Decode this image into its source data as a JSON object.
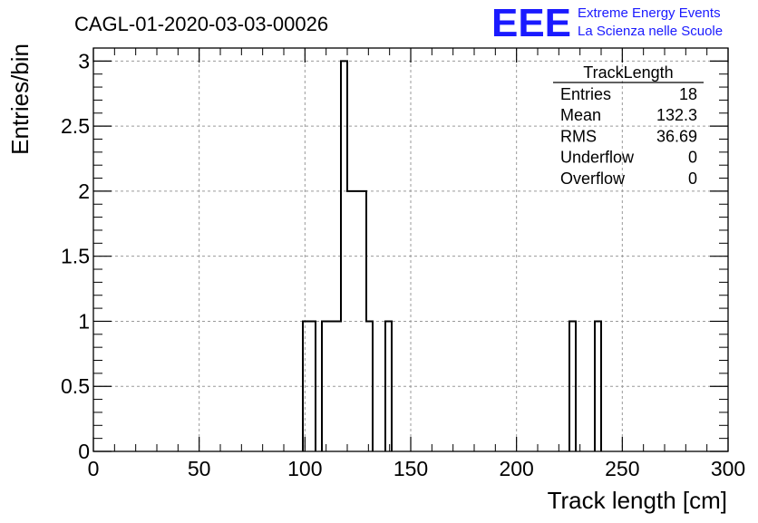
{
  "chart_data": {
    "type": "histogram",
    "title": "CAGL-01-2020-03-03-00026",
    "xlabel": "Track length [cm]",
    "ylabel": "Entries/bin",
    "xlim": [
      0,
      300
    ],
    "ylim": [
      0,
      3.1
    ],
    "x_ticks": [
      "0",
      "50",
      "100",
      "150",
      "200",
      "250",
      "300"
    ],
    "y_ticks": [
      "0",
      "0.5",
      "1",
      "1.5",
      "2",
      "2.5",
      "3"
    ],
    "grid": true,
    "bin_width": 3,
    "bins": [
      {
        "x": 99,
        "count": 1
      },
      {
        "x": 102,
        "count": 1
      },
      {
        "x": 108,
        "count": 1
      },
      {
        "x": 111,
        "count": 1
      },
      {
        "x": 114,
        "count": 1
      },
      {
        "x": 117,
        "count": 3
      },
      {
        "x": 120,
        "count": 2
      },
      {
        "x": 123,
        "count": 2
      },
      {
        "x": 126,
        "count": 2
      },
      {
        "x": 129,
        "count": 1
      },
      {
        "x": 138,
        "count": 1
      },
      {
        "x": 225,
        "count": 1
      },
      {
        "x": 237,
        "count": 1
      }
    ]
  },
  "stats": {
    "title": "TrackLength",
    "rows": [
      {
        "label": "Entries",
        "value": "18"
      },
      {
        "label": "Mean",
        "value": "132.3"
      },
      {
        "label": "RMS",
        "value": "36.69"
      },
      {
        "label": "Underflow",
        "value": "0"
      },
      {
        "label": "Overflow",
        "value": "0"
      }
    ]
  },
  "logo": {
    "mark": "EEE",
    "line1": "Extreme Energy Events",
    "line2": "La Scienza nelle Scuole",
    "color": "#1a1aff"
  }
}
